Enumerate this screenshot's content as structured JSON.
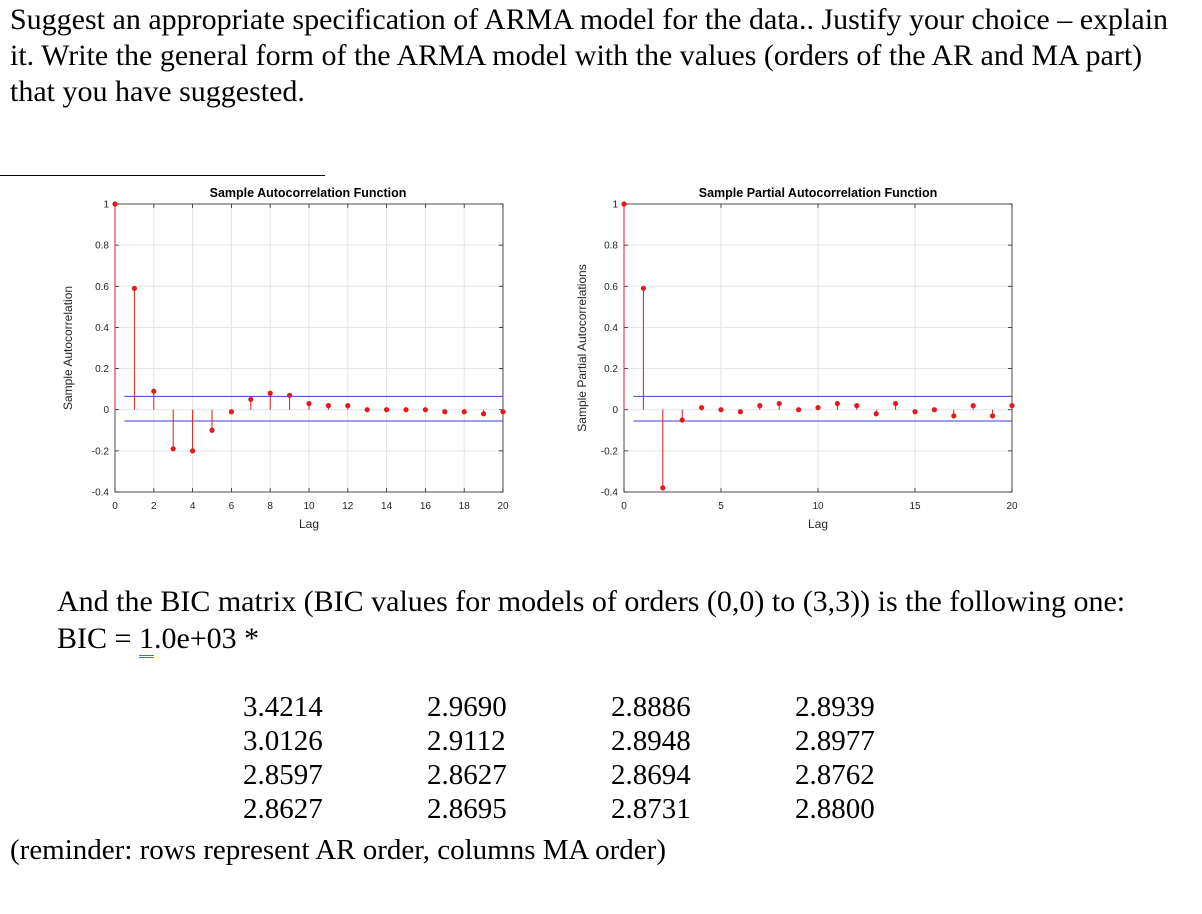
{
  "question": "Suggest an appropriate specification of ARMA model for the data.. Justify your choice – explain it. Write the general form of the ARMA model with the values (orders of the AR and MA part) that you have suggested.",
  "bic": {
    "intro": "And the BIC matrix (BIC values for models of orders (0,0) to (3,3)) is the following one:",
    "label": "BIC =",
    "multiplier_underlined": "1",
    "multiplier_rest": ".0e+03 *",
    "rows": [
      [
        "3.4214",
        "2.9690",
        "2.8886",
        "2.8939"
      ],
      [
        "3.0126",
        "2.9112",
        "2.8948",
        "2.8977"
      ],
      [
        "2.8597",
        "2.8627",
        "2.8694",
        "2.8762"
      ],
      [
        "2.8627",
        "2.8695",
        "2.8731",
        "2.8800"
      ]
    ],
    "reminder": "(reminder: rows represent AR order, columns MA order)"
  },
  "colors": {
    "stem": "#e31a1c",
    "bound": "#3b3bd9",
    "grid": "#e3e3e3"
  },
  "chart_data": [
    {
      "type": "stem",
      "title": "Sample Autocorrelation Function",
      "xlabel": "Lag",
      "ylabel": "Sample Autocorrelation",
      "xlim": [
        0,
        20
      ],
      "ylim": [
        -0.4,
        1
      ],
      "xticks": [
        0,
        2,
        4,
        6,
        8,
        10,
        12,
        14,
        16,
        18,
        20
      ],
      "yticks": [
        -0.4,
        -0.2,
        0,
        0.2,
        0.4,
        0.6,
        0.8,
        1
      ],
      "ytick_labels": [
        "-0.4",
        "-0.2",
        "0",
        "0.2",
        "0.4",
        "0.6",
        "0.8",
        "1"
      ],
      "grid": true,
      "x": [
        0,
        1,
        2,
        3,
        4,
        5,
        6,
        7,
        8,
        9,
        10,
        11,
        12,
        13,
        14,
        15,
        16,
        17,
        18,
        19,
        20
      ],
      "values": [
        1,
        0.59,
        0.09,
        -0.19,
        -0.2,
        -0.1,
        -0.01,
        0.05,
        0.08,
        0.07,
        0.03,
        0.02,
        0.02,
        0.0,
        0.0,
        0.0,
        0.0,
        -0.01,
        -0.01,
        -0.02,
        -0.01
      ],
      "confidence_bounds": [
        0.065,
        -0.055
      ]
    },
    {
      "type": "stem",
      "title": "Sample Partial Autocorrelation Function",
      "xlabel": "Lag",
      "ylabel": "Sample Partial Autocorrelations",
      "xlim": [
        0,
        20
      ],
      "ylim": [
        -0.4,
        1
      ],
      "xticks": [
        0,
        5,
        10,
        15,
        20
      ],
      "yticks": [
        -0.4,
        -0.2,
        0,
        0.2,
        0.4,
        0.6,
        0.8,
        1
      ],
      "ytick_labels": [
        "-0.4",
        "-0.2",
        "0",
        "0.2",
        "0.4",
        "0.6",
        "0.8",
        "1"
      ],
      "grid": true,
      "x": [
        0,
        1,
        2,
        3,
        4,
        5,
        6,
        7,
        8,
        9,
        10,
        11,
        12,
        13,
        14,
        15,
        16,
        17,
        18,
        19,
        20
      ],
      "values": [
        1,
        0.59,
        -0.38,
        -0.05,
        0.01,
        0.0,
        -0.01,
        0.02,
        0.03,
        0.0,
        0.01,
        0.03,
        0.02,
        -0.02,
        0.03,
        -0.01,
        0.0,
        -0.03,
        0.02,
        -0.03,
        0.02
      ],
      "confidence_bounds": [
        0.065,
        -0.055
      ]
    }
  ]
}
